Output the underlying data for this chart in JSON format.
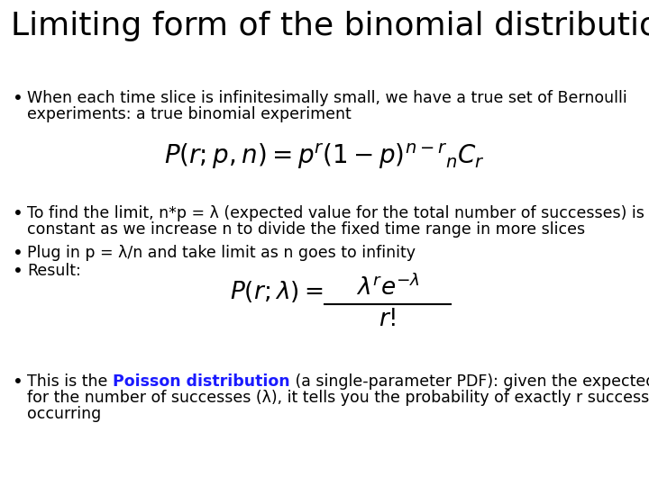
{
  "title": "Limiting form of the binomial distribution",
  "title_fontsize": 26,
  "title_color": "#000000",
  "background_color": "#ffffff",
  "bullet1_line1": "When each time slice is infinitesimally small, we have a true set of Bernoulli",
  "bullet1_line2": "experiments: a true binomial experiment",
  "bullet2_line1": "To find the limit, n*p = λ (expected value for the total number of successes) is held",
  "bullet2_line2": "constant as we increase n to divide the fixed time range in more slices",
  "bullet3": "Plug in p = λ/n and take limit as n goes to infinity",
  "bullet4": "Result:",
  "bullet5_part1": "This is the ",
  "bullet5_bold": "Poisson distribution",
  "bullet5_rest_line1": " (a single-parameter PDF): given the expected value",
  "bullet5_line2": "for the number of successes (λ), it tells you the probability of exactly r successes",
  "bullet5_line3": "occurring",
  "poisson_color": "#1a1aff",
  "text_fontsize": 12.5,
  "formula1_fontsize": 20,
  "formula2_fontsize": 19,
  "bullet_color": "#000000",
  "bullet_symbol": "•"
}
